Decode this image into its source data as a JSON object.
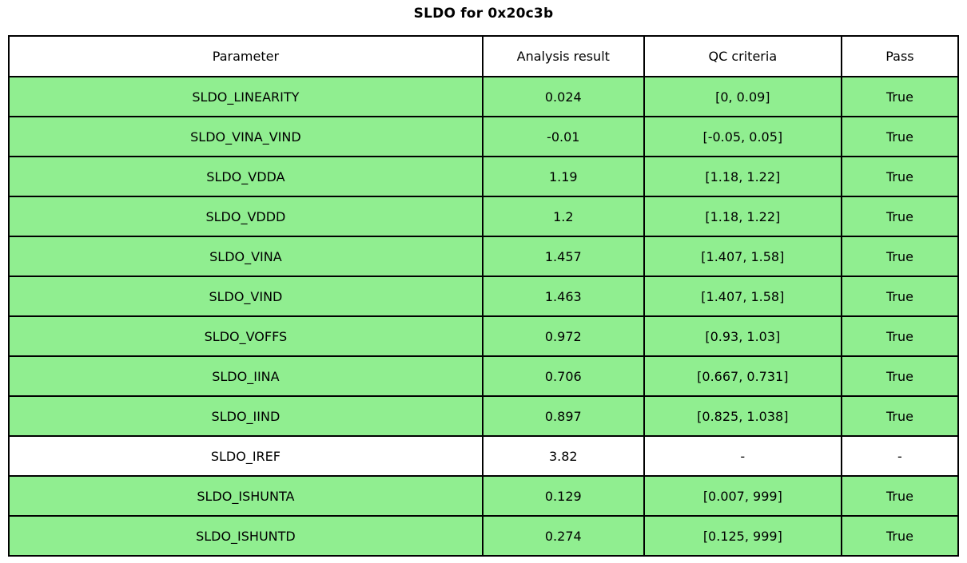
{
  "title": "SLDO for 0x20c3b",
  "colors": {
    "pass_green": "#90ee90",
    "neutral_white": "#ffffff",
    "border": "#000000"
  },
  "table": {
    "columns": [
      "Parameter",
      "Analysis result",
      "QC criteria",
      "Pass"
    ],
    "rows": [
      {
        "parameter": "SLDO_LINEARITY",
        "analysis_result": "0.024",
        "qc_criteria": "[0, 0.09]",
        "pass": "True",
        "highlighted": true
      },
      {
        "parameter": "SLDO_VINA_VIND",
        "analysis_result": "-0.01",
        "qc_criteria": "[-0.05, 0.05]",
        "pass": "True",
        "highlighted": true
      },
      {
        "parameter": "SLDO_VDDA",
        "analysis_result": "1.19",
        "qc_criteria": "[1.18, 1.22]",
        "pass": "True",
        "highlighted": true
      },
      {
        "parameter": "SLDO_VDDD",
        "analysis_result": "1.2",
        "qc_criteria": "[1.18, 1.22]",
        "pass": "True",
        "highlighted": true
      },
      {
        "parameter": "SLDO_VINA",
        "analysis_result": "1.457",
        "qc_criteria": "[1.407, 1.58]",
        "pass": "True",
        "highlighted": true
      },
      {
        "parameter": "SLDO_VIND",
        "analysis_result": "1.463",
        "qc_criteria": "[1.407, 1.58]",
        "pass": "True",
        "highlighted": true
      },
      {
        "parameter": "SLDO_VOFFS",
        "analysis_result": "0.972",
        "qc_criteria": "[0.93, 1.03]",
        "pass": "True",
        "highlighted": true
      },
      {
        "parameter": "SLDO_IINA",
        "analysis_result": "0.706",
        "qc_criteria": "[0.667, 0.731]",
        "pass": "True",
        "highlighted": true
      },
      {
        "parameter": "SLDO_IIND",
        "analysis_result": "0.897",
        "qc_criteria": "[0.825, 1.038]",
        "pass": "True",
        "highlighted": true
      },
      {
        "parameter": "SLDO_IREF",
        "analysis_result": "3.82",
        "qc_criteria": "-",
        "pass": "-",
        "highlighted": false
      },
      {
        "parameter": "SLDO_ISHUNTA",
        "analysis_result": "0.129",
        "qc_criteria": "[0.007, 999]",
        "pass": "True",
        "highlighted": true
      },
      {
        "parameter": "SLDO_ISHUNTD",
        "analysis_result": "0.274",
        "qc_criteria": "[0.125, 999]",
        "pass": "True",
        "highlighted": true
      }
    ]
  }
}
